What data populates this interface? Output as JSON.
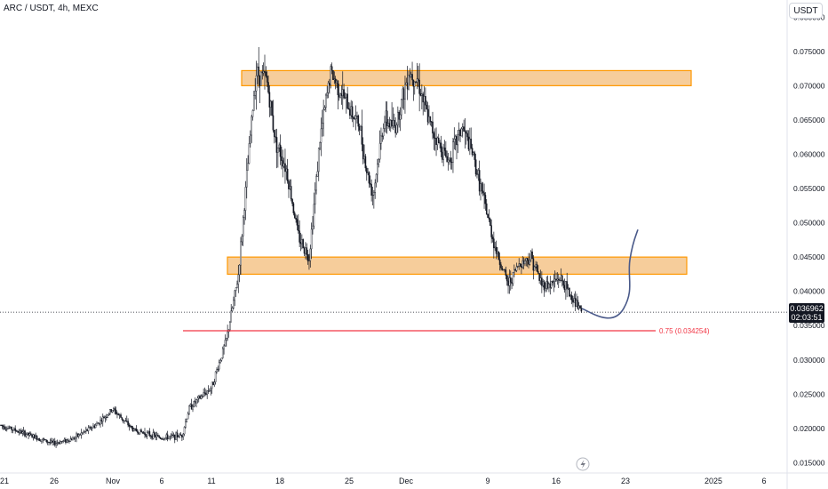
{
  "header": {
    "title": "ARC / USDT, 4h, MEXC",
    "currency": "USDT"
  },
  "price_tag": {
    "price": "0.036962",
    "countdown": "02:03:51"
  },
  "colors": {
    "zone_fill": "#f5c48a",
    "zone_border": "#ff9800",
    "fib_line": "#f23645",
    "projection": "#4a5a8a",
    "candle": "#131722",
    "axis_text": "#131722"
  },
  "icons": {
    "replay": "lightning-icon"
  },
  "chart_data": {
    "type": "candlestick",
    "title": "ARC / USDT, 4h, MEXC",
    "xlabel": "",
    "ylabel": "",
    "ylim": [
      0.0135,
      0.0825
    ],
    "grid": false,
    "y_ticks": [
      "0.080000",
      "0.075000",
      "0.070000",
      "0.065000",
      "0.060000",
      "0.055000",
      "0.050000",
      "0.045000",
      "0.040000",
      "0.035000",
      "0.030000",
      "0.025000",
      "0.020000",
      "0.015000"
    ],
    "x_ticks": [
      "21",
      "26",
      "Nov",
      "6",
      "11",
      "18",
      "25",
      "Dec",
      "9",
      "16",
      "23",
      "2025",
      "6"
    ],
    "price_path": [
      [
        "21",
        0.0205
      ],
      [
        "26",
        0.0178
      ],
      [
        "28",
        0.0185
      ],
      [
        "31",
        0.0205
      ],
      [
        "Nov",
        0.0228
      ],
      [
        "3",
        0.0198
      ],
      [
        "6",
        0.0186
      ],
      [
        "9",
        0.019
      ],
      [
        "10",
        0.023
      ],
      [
        "11",
        0.026
      ],
      [
        "12",
        0.033
      ],
      [
        "13",
        0.042
      ],
      [
        "14",
        0.057
      ],
      [
        "15",
        0.072
      ],
      [
        "16",
        0.071
      ],
      [
        "17",
        0.062
      ],
      [
        "18",
        0.058
      ],
      [
        "20",
        0.048
      ],
      [
        "21",
        0.045
      ],
      [
        "22",
        0.062
      ],
      [
        "23",
        0.072
      ],
      [
        "25",
        0.067
      ],
      [
        "26",
        0.064
      ],
      [
        "27",
        0.058
      ],
      [
        "28",
        0.054
      ],
      [
        "29",
        0.065
      ],
      [
        "30",
        0.064
      ],
      [
        "Dec 1",
        0.072
      ],
      [
        "2",
        0.071
      ],
      [
        "3",
        0.065
      ],
      [
        "4",
        0.062
      ],
      [
        "5",
        0.059
      ],
      [
        "6",
        0.064
      ],
      [
        "7",
        0.06
      ],
      [
        "8",
        0.053
      ],
      [
        "9",
        0.046
      ],
      [
        "10",
        0.041
      ],
      [
        "11",
        0.044
      ],
      [
        "12",
        0.045
      ],
      [
        "13",
        0.041
      ],
      [
        "14",
        0.041
      ],
      [
        "15",
        0.042
      ],
      [
        "16",
        0.039
      ],
      [
        "17",
        0.037
      ]
    ],
    "zones": [
      {
        "type": "resistance",
        "top": 0.0722,
        "bottom": 0.07,
        "from": "Nov 13",
        "to": "Dec 31"
      },
      {
        "type": "support",
        "top": 0.045,
        "bottom": 0.0425,
        "from": "Nov 13",
        "to": "Dec 31"
      }
    ],
    "fib_level": {
      "level": "0.75 (0.034254)",
      "value": 0.034254
    },
    "projection": [
      [
        "17",
        0.0375
      ],
      [
        "19",
        0.0366
      ],
      [
        "21",
        0.0375
      ],
      [
        "22",
        0.042
      ],
      [
        "23",
        0.049
      ]
    ],
    "last_price": 0.036962
  }
}
